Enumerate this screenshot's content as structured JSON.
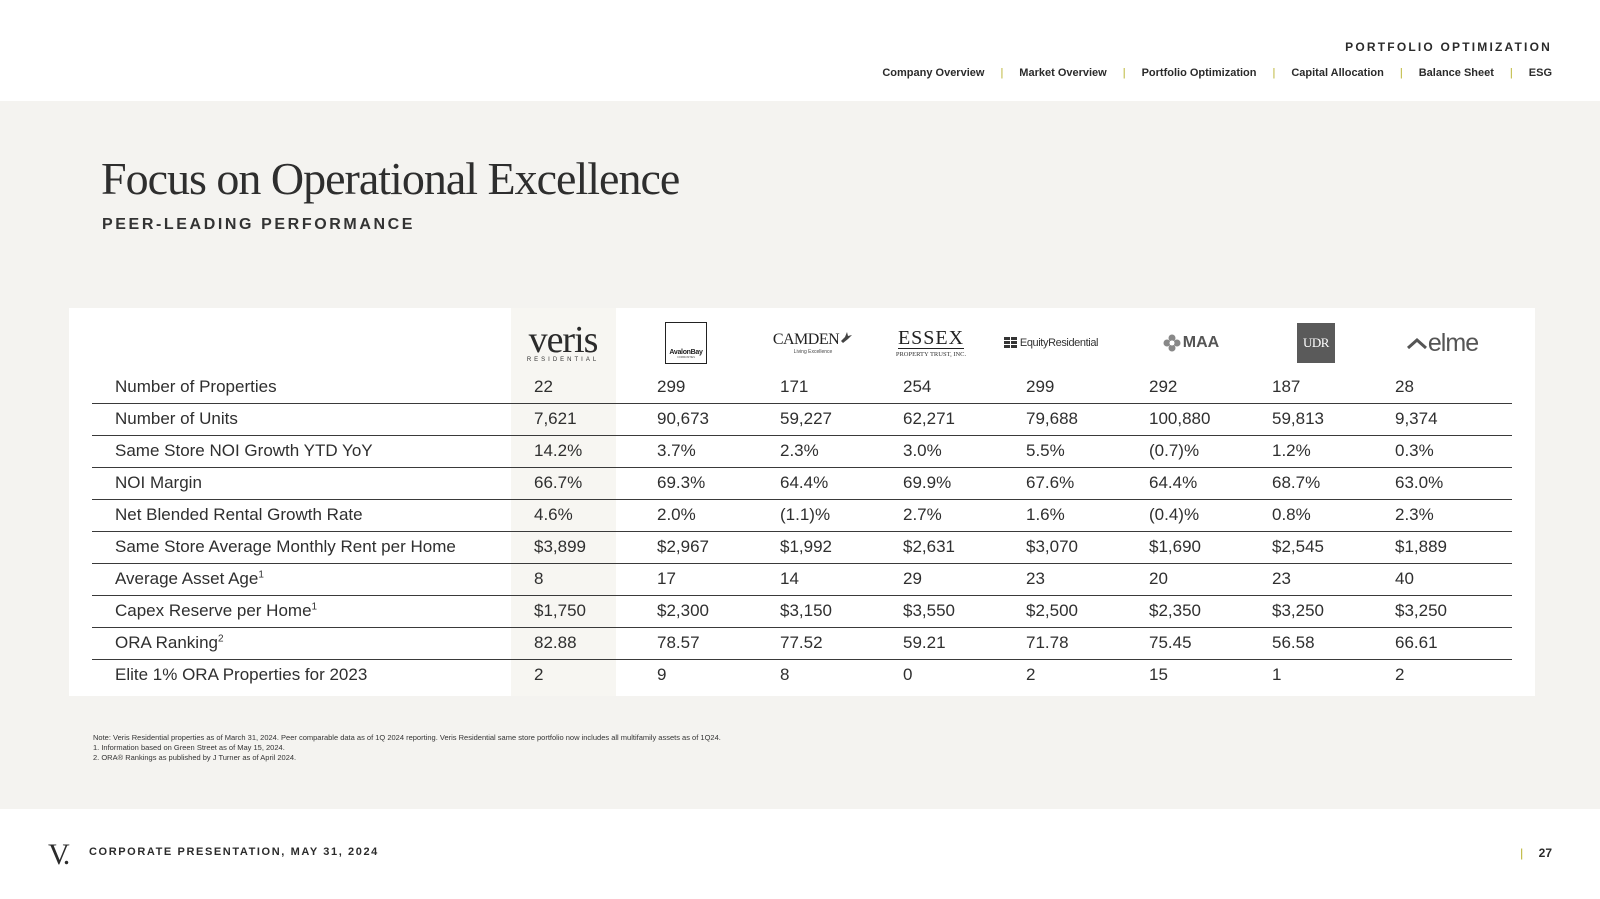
{
  "header": {
    "section": "PORTFOLIO OPTIMIZATION",
    "nav": [
      "Company Overview",
      "Market Overview",
      "Portfolio Optimization",
      "Capital Allocation",
      "Balance Sheet",
      "ESG"
    ],
    "separator": "|"
  },
  "slide": {
    "title": "Focus on Operational Excellence",
    "subtitle": "PEER-LEADING PERFORMANCE"
  },
  "table": {
    "companies": [
      {
        "name": "Veris Residential",
        "logo_text": "veris",
        "logo_sub": "RESIDENTIAL"
      },
      {
        "name": "AvalonBay",
        "logo_text": "AvalonBay",
        "logo_sub": "COMMUNITIES"
      },
      {
        "name": "Camden",
        "logo_text": "CAMDEN",
        "logo_sub": "Living Excellence"
      },
      {
        "name": "Essex",
        "logo_text": "ESSEX",
        "logo_sub": "PROPERTY TRUST, INC."
      },
      {
        "name": "Equity Residential",
        "logo_text": "EquityResidential"
      },
      {
        "name": "MAA",
        "logo_text": "MAA"
      },
      {
        "name": "UDR",
        "logo_text": "UDR"
      },
      {
        "name": "Elme",
        "logo_text": "elme"
      }
    ],
    "rows": [
      {
        "label": "Number of Properties",
        "sup": "",
        "values": [
          "22",
          "299",
          "171",
          "254",
          "299",
          "292",
          "187",
          "28"
        ]
      },
      {
        "label": "Number of Units",
        "sup": "",
        "values": [
          "7,621",
          "90,673",
          "59,227",
          "62,271",
          "79,688",
          "100,880",
          "59,813",
          "9,374"
        ]
      },
      {
        "label": "Same Store NOI Growth YTD YoY",
        "sup": "",
        "values": [
          "14.2%",
          "3.7%",
          "2.3%",
          "3.0%",
          "5.5%",
          "(0.7)%",
          "1.2%",
          "0.3%"
        ]
      },
      {
        "label": "NOI Margin",
        "sup": "",
        "values": [
          "66.7%",
          "69.3%",
          "64.4%",
          "69.9%",
          "67.6%",
          "64.4%",
          "68.7%",
          "63.0%"
        ]
      },
      {
        "label": "Net Blended Rental Growth Rate",
        "sup": "",
        "values": [
          "4.6%",
          "2.0%",
          "(1.1)%",
          "2.7%",
          "1.6%",
          "(0.4)%",
          "0.8%",
          "2.3%"
        ]
      },
      {
        "label": "Same Store Average Monthly Rent per Home",
        "sup": "",
        "values": [
          "$3,899",
          "$2,967",
          "$1,992",
          "$2,631",
          "$3,070",
          "$1,690",
          "$2,545",
          "$1,889"
        ]
      },
      {
        "label": "Average Asset Age",
        "sup": "1",
        "values": [
          "8",
          "17",
          "14",
          "29",
          "23",
          "20",
          "23",
          "40"
        ]
      },
      {
        "label": "Capex Reserve per Home",
        "sup": "1",
        "values": [
          "$1,750",
          "$2,300",
          "$3,150",
          "$3,550",
          "$2,500",
          "$2,350",
          "$3,250",
          "$3,250"
        ]
      },
      {
        "label": "ORA Ranking",
        "sup": "2",
        "values": [
          "82.88",
          "78.57",
          "77.52",
          "59.21",
          "71.78",
          "75.45",
          "56.58",
          "66.61"
        ]
      },
      {
        "label": "Elite 1% ORA Properties for 2023",
        "sup": "",
        "values": [
          "2",
          "9",
          "8",
          "0",
          "2",
          "15",
          "1",
          "2"
        ]
      }
    ]
  },
  "footnotes": [
    "Note: Veris Residential properties as of March 31, 2024. Peer comparable data as of 1Q 2024 reporting. Veris Residential same store portfolio now includes all multifamily assets as of 1Q24.",
    "1. Information based on Green Street as of May 15, 2024.",
    "2. ORA® Rankings as published by J Turner as of April 2024."
  ],
  "footer": {
    "logo_glyph": "V.",
    "text": "CORPORATE PRESENTATION, MAY 31, 2024",
    "page_sep": "|",
    "page_number": "27"
  },
  "colors": {
    "accent": "#b7b12a",
    "band": "#f4f3f0",
    "text": "#2b2b2b",
    "veris_column": "#f7f6f2"
  }
}
